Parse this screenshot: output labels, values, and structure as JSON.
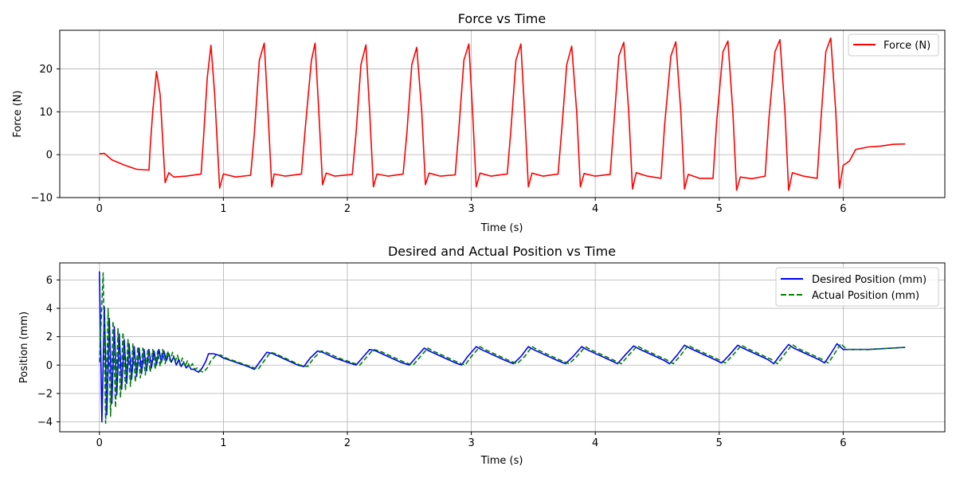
{
  "chart_data": [
    {
      "type": "line",
      "title": "Force vs Time",
      "xlabel": "Time (s)",
      "ylabel": "Force (N)",
      "xlim": [
        -0.32,
        6.82
      ],
      "ylim": [
        -10.0,
        29.0
      ],
      "xticks": [
        0,
        1,
        2,
        3,
        4,
        5,
        6
      ],
      "yticks": [
        -10,
        0,
        10,
        20
      ],
      "grid": true,
      "legend_position": "top-right",
      "series": [
        {
          "name": "Force (N)",
          "color": "#ff0000",
          "style": "solid",
          "x": [
            0.0,
            0.04,
            0.1,
            0.2,
            0.3,
            0.4,
            0.41,
            0.43,
            0.46,
            0.49,
            0.53,
            0.56,
            0.6,
            0.7,
            0.82,
            0.84,
            0.87,
            0.9,
            0.93,
            0.97,
            1.0,
            1.1,
            1.22,
            1.25,
            1.29,
            1.33,
            1.36,
            1.39,
            1.41,
            1.5,
            1.63,
            1.66,
            1.71,
            1.74,
            1.77,
            1.8,
            1.83,
            1.9,
            2.04,
            2.07,
            2.11,
            2.15,
            2.18,
            2.21,
            2.24,
            2.33,
            2.45,
            2.48,
            2.52,
            2.56,
            2.6,
            2.63,
            2.66,
            2.75,
            2.87,
            2.9,
            2.94,
            2.98,
            3.01,
            3.04,
            3.07,
            3.16,
            3.29,
            3.32,
            3.36,
            3.4,
            3.43,
            3.46,
            3.49,
            3.58,
            3.7,
            3.73,
            3.77,
            3.81,
            3.85,
            3.88,
            3.91,
            4.0,
            4.12,
            4.15,
            4.19,
            4.23,
            4.27,
            4.3,
            4.33,
            4.42,
            4.53,
            4.56,
            4.61,
            4.65,
            4.69,
            4.72,
            4.75,
            4.84,
            4.95,
            4.98,
            5.03,
            5.07,
            5.11,
            5.14,
            5.17,
            5.26,
            5.37,
            5.4,
            5.45,
            5.49,
            5.53,
            5.56,
            5.59,
            5.68,
            5.79,
            5.82,
            5.86,
            5.9,
            5.94,
            5.97,
            6.0,
            6.05,
            6.1,
            6.2,
            6.3,
            6.4,
            6.5
          ],
          "values": [
            0.2,
            0.3,
            -1.2,
            -2.4,
            -3.4,
            -3.6,
            2.0,
            10.0,
            19.4,
            14.0,
            -6.5,
            -4.2,
            -5.2,
            -5.0,
            -4.5,
            4.0,
            18.0,
            25.5,
            14.0,
            -7.8,
            -4.5,
            -5.2,
            -4.8,
            5.0,
            22.0,
            26.0,
            10.0,
            -7.5,
            -4.5,
            -5.0,
            -4.5,
            6.0,
            22.0,
            26.0,
            10.0,
            -7.0,
            -4.3,
            -5.0,
            -4.6,
            5.0,
            21.0,
            25.6,
            10.0,
            -7.5,
            -4.5,
            -5.0,
            -4.5,
            5.0,
            21.0,
            25.0,
            10.0,
            -7.0,
            -4.3,
            -5.0,
            -4.7,
            6.0,
            22.0,
            25.8,
            10.0,
            -7.5,
            -4.3,
            -5.0,
            -4.5,
            6.0,
            22.0,
            25.8,
            10.0,
            -7.5,
            -4.3,
            -5.0,
            -4.5,
            6.0,
            21.0,
            25.3,
            10.0,
            -7.5,
            -4.4,
            -5.0,
            -4.6,
            7.0,
            23.0,
            26.2,
            10.0,
            -8.0,
            -4.2,
            -5.0,
            -5.5,
            7.0,
            23.0,
            26.3,
            10.0,
            -8.0,
            -4.6,
            -5.5,
            -5.5,
            8.0,
            24.0,
            26.5,
            10.0,
            -8.3,
            -5.2,
            -5.6,
            -5.0,
            8.0,
            24.0,
            26.8,
            10.0,
            -8.3,
            -4.2,
            -5.0,
            -5.5,
            8.0,
            24.0,
            27.2,
            10.0,
            -7.8,
            -2.5,
            -1.5,
            1.2,
            1.8,
            2.0,
            2.4,
            2.5
          ]
        }
      ]
    },
    {
      "type": "line",
      "title": "Desired and Actual Position vs Time",
      "xlabel": "Time (s)",
      "ylabel": "Position (mm)",
      "xlim": [
        -0.32,
        6.82
      ],
      "ylim": [
        -4.7,
        7.2
      ],
      "xticks": [
        0,
        1,
        2,
        3,
        4,
        5,
        6
      ],
      "yticks": [
        -4,
        -2,
        0,
        2,
        4,
        6
      ],
      "grid": true,
      "legend_position": "top-right",
      "series": [
        {
          "name": "Desired Position (mm)",
          "color": "#0000ff",
          "style": "solid",
          "x": [
            0.0,
            0.02,
            0.04,
            0.06,
            0.08,
            0.1,
            0.12,
            0.14,
            0.16,
            0.18,
            0.2,
            0.22,
            0.24,
            0.26,
            0.28,
            0.3,
            0.32,
            0.34,
            0.36,
            0.38,
            0.4,
            0.42,
            0.44,
            0.46,
            0.48,
            0.5,
            0.52,
            0.54,
            0.56,
            0.58,
            0.6,
            0.62,
            0.64,
            0.66,
            0.68,
            0.7,
            0.72,
            0.74,
            0.76,
            0.78,
            0.8,
            0.83,
            0.86,
            0.88,
            0.92,
            0.96,
            1.0,
            1.1,
            1.2,
            1.25,
            1.3,
            1.35,
            1.4,
            1.5,
            1.6,
            1.65,
            1.7,
            1.76,
            1.8,
            1.9,
            2.0,
            2.07,
            2.12,
            2.18,
            2.23,
            2.33,
            2.43,
            2.5,
            2.55,
            2.62,
            2.66,
            2.76,
            2.86,
            2.92,
            2.97,
            3.04,
            3.08,
            3.18,
            3.28,
            3.34,
            3.4,
            3.46,
            3.5,
            3.6,
            3.7,
            3.76,
            3.82,
            3.89,
            3.93,
            4.03,
            4.13,
            4.18,
            4.24,
            4.31,
            4.35,
            4.45,
            4.55,
            4.6,
            4.66,
            4.72,
            4.76,
            4.86,
            4.96,
            5.02,
            5.08,
            5.15,
            5.19,
            5.29,
            5.39,
            5.44,
            5.5,
            5.56,
            5.6,
            5.7,
            5.8,
            5.85,
            5.9,
            5.95,
            6.0,
            6.2,
            6.5
          ],
          "values": [
            6.6,
            -4.0,
            4.1,
            -3.5,
            3.3,
            -2.7,
            2.7,
            -2.1,
            2.2,
            -1.7,
            1.8,
            -1.3,
            1.5,
            -1.0,
            1.3,
            -0.8,
            1.2,
            -0.6,
            1.1,
            -0.4,
            1.1,
            -0.2,
            1.0,
            0.0,
            1.1,
            0.2,
            1.0,
            0.3,
            0.8,
            0.2,
            0.6,
            0.0,
            0.4,
            -0.1,
            0.2,
            -0.2,
            0.0,
            -0.3,
            -0.3,
            -0.4,
            -0.5,
            -0.2,
            0.3,
            0.8,
            0.8,
            0.7,
            0.5,
            0.2,
            -0.1,
            -0.3,
            0.3,
            0.9,
            0.8,
            0.4,
            0.0,
            -0.1,
            0.5,
            1.0,
            0.9,
            0.5,
            0.2,
            0.0,
            0.5,
            1.1,
            1.0,
            0.6,
            0.2,
            0.0,
            0.5,
            1.2,
            1.0,
            0.6,
            0.2,
            0.0,
            0.6,
            1.3,
            1.1,
            0.7,
            0.3,
            0.1,
            0.6,
            1.3,
            1.1,
            0.7,
            0.3,
            0.1,
            0.6,
            1.3,
            1.1,
            0.7,
            0.3,
            0.1,
            0.7,
            1.35,
            1.15,
            0.75,
            0.35,
            0.1,
            0.7,
            1.4,
            1.2,
            0.8,
            0.4,
            0.15,
            0.7,
            1.4,
            1.2,
            0.8,
            0.4,
            0.1,
            0.8,
            1.45,
            1.2,
            0.8,
            0.4,
            0.15,
            0.8,
            1.5,
            1.1,
            1.1,
            1.25
          ]
        },
        {
          "name": "Actual Position (mm)",
          "color": "#008000",
          "style": "dashed",
          "x": [
            0.0,
            0.03,
            0.05,
            0.07,
            0.09,
            0.11,
            0.13,
            0.15,
            0.17,
            0.19,
            0.21,
            0.23,
            0.25,
            0.27,
            0.29,
            0.31,
            0.33,
            0.35,
            0.37,
            0.39,
            0.41,
            0.43,
            0.45,
            0.47,
            0.49,
            0.51,
            0.53,
            0.55,
            0.57,
            0.59,
            0.61,
            0.63,
            0.65,
            0.67,
            0.69,
            0.71,
            0.73,
            0.75,
            0.77,
            0.79,
            0.81,
            0.84,
            0.87,
            0.9,
            0.94,
            0.98,
            1.02,
            1.12,
            1.22,
            1.28,
            1.33,
            1.38,
            1.42,
            1.52,
            1.62,
            1.68,
            1.73,
            1.79,
            1.83,
            1.93,
            2.03,
            2.1,
            2.15,
            2.21,
            2.26,
            2.36,
            2.46,
            2.53,
            2.58,
            2.65,
            2.69,
            2.79,
            2.89,
            2.95,
            3.0,
            3.07,
            3.11,
            3.21,
            3.31,
            3.37,
            3.43,
            3.49,
            3.53,
            3.63,
            3.73,
            3.79,
            3.85,
            3.92,
            3.96,
            4.06,
            4.16,
            4.21,
            4.27,
            4.34,
            4.38,
            4.48,
            4.58,
            4.63,
            4.69,
            4.75,
            4.79,
            4.89,
            4.99,
            5.05,
            5.11,
            5.18,
            5.22,
            5.32,
            5.42,
            5.47,
            5.53,
            5.59,
            5.63,
            5.73,
            5.83,
            5.88,
            5.93,
            5.98,
            6.03,
            6.2,
            6.5
          ],
          "values": [
            0.2,
            6.5,
            -4.1,
            4.0,
            -3.6,
            3.1,
            -3.0,
            2.6,
            -2.3,
            2.3,
            -1.8,
            1.8,
            -1.5,
            1.5,
            -1.2,
            1.3,
            -0.9,
            1.2,
            -0.7,
            1.1,
            -0.5,
            1.1,
            -0.3,
            1.0,
            -0.1,
            1.1,
            0.1,
            1.0,
            0.3,
            0.9,
            0.2,
            0.7,
            0.0,
            0.5,
            -0.1,
            0.3,
            -0.2,
            0.1,
            -0.3,
            -0.2,
            -0.4,
            -0.5,
            -0.2,
            0.3,
            0.7,
            0.7,
            0.5,
            0.2,
            -0.1,
            -0.3,
            0.3,
            0.9,
            0.8,
            0.4,
            0.0,
            -0.1,
            0.5,
            1.0,
            0.9,
            0.5,
            0.2,
            0.0,
            0.5,
            1.1,
            1.0,
            0.6,
            0.2,
            0.0,
            0.5,
            1.2,
            1.0,
            0.6,
            0.2,
            0.0,
            0.6,
            1.3,
            1.1,
            0.7,
            0.3,
            0.1,
            0.6,
            1.3,
            1.1,
            0.7,
            0.3,
            0.1,
            0.6,
            1.3,
            1.1,
            0.7,
            0.3,
            0.1,
            0.7,
            1.35,
            1.15,
            0.75,
            0.35,
            0.1,
            0.7,
            1.4,
            1.2,
            0.8,
            0.4,
            0.15,
            0.7,
            1.4,
            1.2,
            0.8,
            0.4,
            0.1,
            0.8,
            1.45,
            1.2,
            0.8,
            0.4,
            0.15,
            0.8,
            1.5,
            1.1,
            1.1,
            1.25
          ]
        }
      ]
    }
  ]
}
